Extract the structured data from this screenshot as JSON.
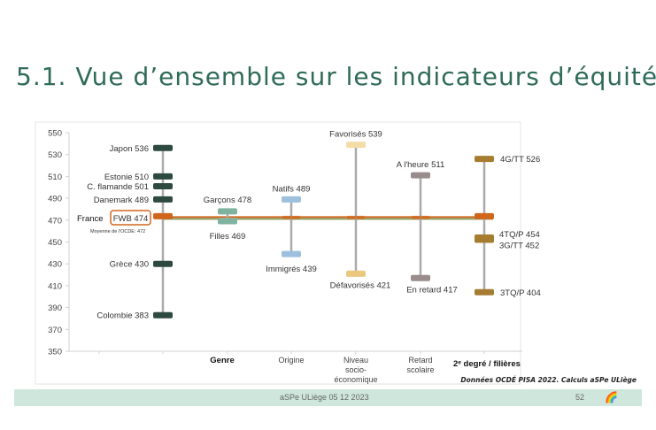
{
  "title": "5.1. Vue d’ensemble sur les indicateurs d’équité",
  "source": "Données OCDÉ PISA 2022. Calculs aSPe ULiège",
  "footer": {
    "text": "aSPe ULiège 05 12 2023",
    "page": "52",
    "logo_icons": [
      "uliege-logo-icon",
      "aspe-logo-icon"
    ]
  },
  "chart_data": {
    "type": "range-markers",
    "ylim": [
      350,
      550
    ],
    "yticks": [
      350,
      370,
      390,
      410,
      430,
      450,
      470,
      490,
      510,
      530,
      550
    ],
    "categories": [
      "",
      "Genre",
      "Origine",
      "Niveau socio-économique",
      "Retard scolaire",
      "2e degré / filières"
    ],
    "category_lines": [
      [
        ""
      ],
      [
        "Genre"
      ],
      [
        "Origine"
      ],
      [
        "Niveau",
        "socio-",
        "économique"
      ],
      [
        "Retard",
        "scolaire"
      ],
      [
        "2ᵉ degré / filières"
      ]
    ],
    "reference": {
      "france_label": "France",
      "fwb_label": "FWB 474",
      "fwb_value": 474,
      "oecd_label": "Moyenne de l'OCDE: 472",
      "oecd_value": 472,
      "fwb_color": "#d0661c",
      "oecd_color": "#8a9a5a"
    },
    "series": [
      {
        "category": 0,
        "color": "#2e4a40",
        "range": [
          383,
          536
        ],
        "points": [
          {
            "label": "Japon 536",
            "value": 536,
            "side": "left"
          },
          {
            "label": "Estonie 510",
            "value": 510,
            "side": "left"
          },
          {
            "label": "C. flamande 501",
            "value": 501,
            "side": "left"
          },
          {
            "label": "Danemark 489",
            "value": 489,
            "side": "left"
          },
          {
            "label": "Grèce 430",
            "value": 430,
            "side": "left"
          },
          {
            "label": "Colombie 383",
            "value": 383,
            "side": "left"
          }
        ]
      },
      {
        "category": 1,
        "color": "#7fb3a0",
        "range": [
          469,
          478
        ],
        "points": [
          {
            "label": "Garçons 478",
            "value": 478,
            "side": "above"
          },
          {
            "label": "Filles 469",
            "value": 469,
            "side": "below"
          }
        ]
      },
      {
        "category": 2,
        "color": "#9dc0de",
        "range": [
          439,
          489
        ],
        "points": [
          {
            "label": "Natifs 489",
            "value": 489,
            "side": "above"
          },
          {
            "label": "Immigrés 439",
            "value": 439,
            "side": "below"
          }
        ]
      },
      {
        "category": 3,
        "color": "#ecc77e",
        "range": [
          421,
          539
        ],
        "points": [
          {
            "label": "Favorisés 539",
            "value": 539,
            "side": "above",
            "color": "#f4dca6"
          },
          {
            "label": "Défavorisés 421",
            "value": 421,
            "side": "below"
          }
        ]
      },
      {
        "category": 4,
        "color": "#9a8c8c",
        "range": [
          417,
          511
        ],
        "points": [
          {
            "label": "A l'heure 511",
            "value": 511,
            "side": "above"
          },
          {
            "label": "En retard 417",
            "value": 417,
            "side": "below"
          }
        ]
      },
      {
        "category": 5,
        "color": "#a57c30",
        "range": [
          404,
          526
        ],
        "points": [
          {
            "label": "4G/TT 526",
            "value": 526,
            "side": "right"
          },
          {
            "label": "4TQ/P 454",
            "value": 454,
            "side": "right-up"
          },
          {
            "label": "3G/TT 452",
            "value": 452,
            "side": "right-down"
          },
          {
            "label": "3TQ/P 404",
            "value": 404,
            "side": "right"
          }
        ]
      }
    ]
  }
}
